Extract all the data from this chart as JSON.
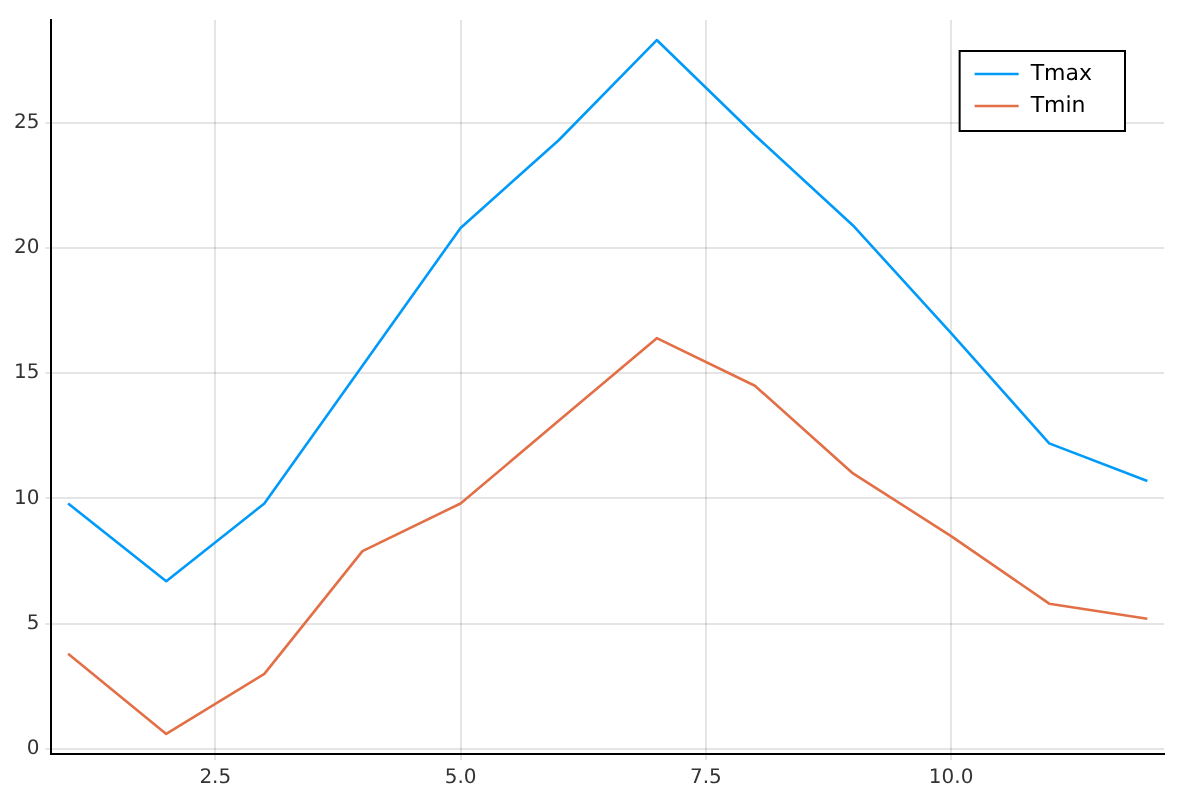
{
  "chart_data": {
    "type": "line",
    "x": [
      1,
      2,
      3,
      4,
      5,
      6,
      7,
      8,
      9,
      10,
      11,
      12
    ],
    "series": [
      {
        "name": "Tmax",
        "color": "#009af9",
        "values": [
          9.8,
          6.7,
          9.8,
          15.3,
          20.8,
          24.3,
          28.3,
          24.5,
          20.9,
          16.6,
          12.2,
          10.7
        ]
      },
      {
        "name": "Tmin",
        "color": "#e26f46",
        "values": [
          3.8,
          0.6,
          3.0,
          7.9,
          9.8,
          13.1,
          16.4,
          14.5,
          11.0,
          8.5,
          5.8,
          5.2
        ]
      }
    ],
    "xlim": [
      0.83,
      12.17
    ],
    "xticks": [
      2.5,
      {
        "value": 5,
        "label": "5.0"
      },
      7.5,
      {
        "value": 10,
        "label": "10.0"
      }
    ],
    "ylim": [
      -0.2,
      29.1
    ],
    "yticks": [
      0,
      5,
      10,
      15,
      20,
      25
    ],
    "grid": true,
    "legend": "top right",
    "marker": "none",
    "line_style": "solid"
  }
}
